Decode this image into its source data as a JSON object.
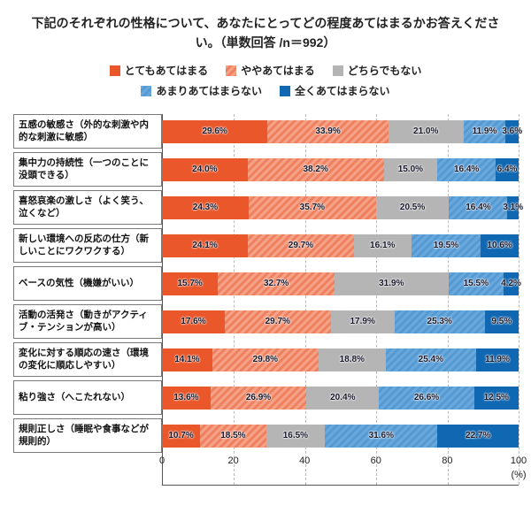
{
  "title": "下記のそれぞれの性格について、あなたにとってどの程度あてはまるかお答えください。（単数回答 /n＝992）",
  "chart_data": {
    "type": "bar",
    "orientation": "horizontal",
    "stacked": true,
    "title": "下記のそれぞれの性格について、あなたにとってどの程度あてはまるかお答えください。（単数回答 /n＝992）",
    "categories": [
      "五感の敏感さ（外的な刺激や内的な刺激に敏感）",
      "集中力の持続性（一つのことに没頭できる）",
      "喜怒哀楽の激しさ（よく笑う、泣くなど）",
      "新しい環境への反応の仕方（新しいことにワクワクする）",
      "ベースの気性（機嫌がいい）",
      "活動の活発さ（動きがアクティブ・テンションが高い）",
      "変化に対する順応の速さ（環境の変化に順応しやすい）",
      "粘り強さ（へこたれない）",
      "規則正しさ（睡眠や食事などが規則的）"
    ],
    "series": [
      {
        "name": "とてもあてはまる",
        "color": "#e9572a",
        "values": [
          29.6,
          24.0,
          24.3,
          24.1,
          15.7,
          17.6,
          14.1,
          13.6,
          10.7
        ]
      },
      {
        "name": "ややあてはまる",
        "color": "#f5a187",
        "stripe_color": "#ee805e",
        "values": [
          33.9,
          38.2,
          35.7,
          29.7,
          32.7,
          29.7,
          29.8,
          26.9,
          18.5
        ]
      },
      {
        "name": "どちらでもない",
        "color": "#b5b5b6",
        "values": [
          21.0,
          15.0,
          20.5,
          16.1,
          31.9,
          17.9,
          18.8,
          20.4,
          16.5
        ]
      },
      {
        "name": "あまりあてはまらない",
        "color": "#6aa7db",
        "stripe_color": "#539ad4",
        "values": [
          11.9,
          16.4,
          16.4,
          19.5,
          15.5,
          25.3,
          25.4,
          26.6,
          31.6
        ]
      },
      {
        "name": "全くあてはまらない",
        "color": "#1168b2",
        "values": [
          3.6,
          6.4,
          3.1,
          10.6,
          4.2,
          9.5,
          11.9,
          12.5,
          22.7
        ]
      }
    ],
    "xlim": [
      0,
      100
    ],
    "x_ticks": [
      0,
      20,
      40,
      60,
      80,
      100
    ],
    "x_unit": "(%)",
    "value_suffix": "%"
  }
}
